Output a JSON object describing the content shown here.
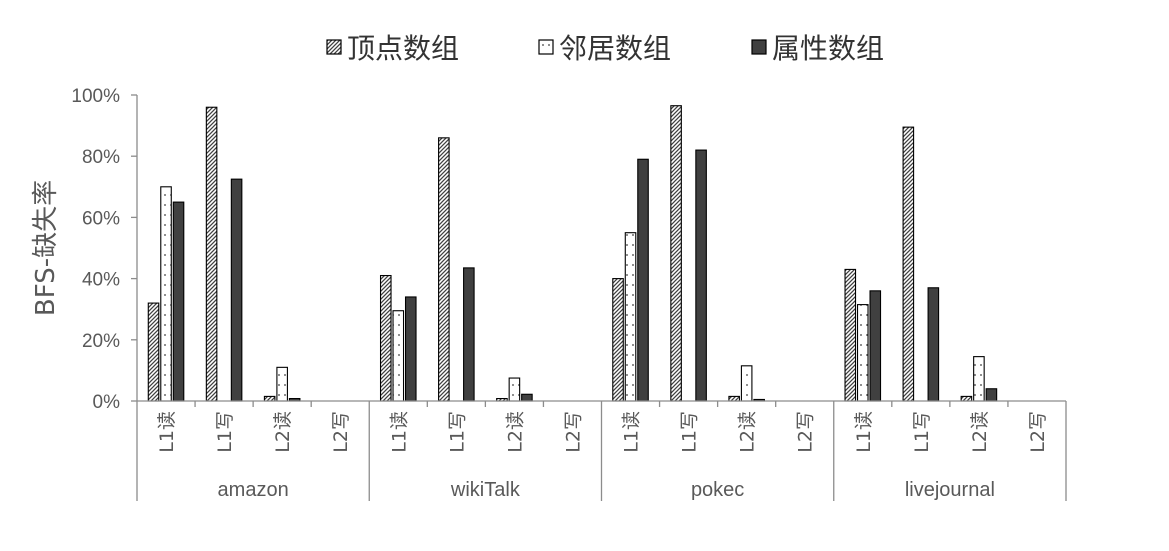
{
  "chart_data": {
    "type": "bar",
    "title": "",
    "xlabel": "",
    "ylabel": "BFS-缺失率",
    "ylim": [
      0,
      100
    ],
    "yticks": [
      "0%",
      "20%",
      "40%",
      "60%",
      "80%",
      "100%"
    ],
    "groups": [
      "amazon",
      "wikiTalk",
      "pokec",
      "livejournal"
    ],
    "categories": [
      "L1读",
      "L1写",
      "L2读",
      "L2写"
    ],
    "legend_position": "top",
    "series": [
      {
        "name": "顶点数组",
        "pattern": "diagonal-hatch",
        "color": "#404040",
        "values": [
          [
            32,
            96,
            1.5,
            0
          ],
          [
            41,
            86,
            0.8,
            0
          ],
          [
            40,
            96.5,
            1.5,
            0
          ],
          [
            43,
            89.5,
            1.5,
            0
          ]
        ]
      },
      {
        "name": "邻居数组",
        "pattern": "dotted",
        "color": "#ffffff",
        "values": [
          [
            70,
            0,
            11,
            0
          ],
          [
            29.5,
            0,
            7.5,
            0
          ],
          [
            55,
            0,
            11.5,
            0
          ],
          [
            31.5,
            0,
            14.5,
            0
          ]
        ]
      },
      {
        "name": "属性数组",
        "pattern": "solid",
        "color": "#404040",
        "values": [
          [
            65,
            72.5,
            0.8,
            0
          ],
          [
            34,
            43.5,
            2.2,
            0
          ],
          [
            79,
            82,
            0.5,
            0
          ],
          [
            36,
            37,
            4,
            0
          ]
        ]
      }
    ]
  }
}
